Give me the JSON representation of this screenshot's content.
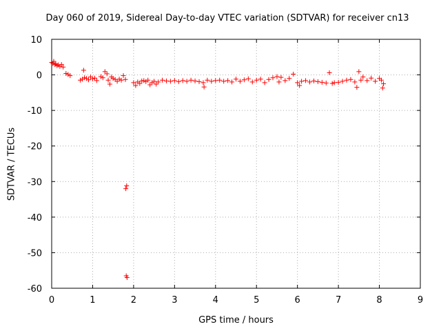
{
  "chart_data": {
    "type": "scatter",
    "title": "Day 060 of 2019, Sidereal Day-to-day VTEC variation (SDTVAR) for receiver cn13",
    "xlabel": "GPS time / hours",
    "ylabel": "SDTVAR / TECUs",
    "xlim": [
      0,
      9
    ],
    "ylim": [
      -60,
      10
    ],
    "xticks": [
      0,
      1,
      2,
      3,
      4,
      5,
      6,
      7,
      8,
      9
    ],
    "yticks": [
      10,
      0,
      -10,
      -20,
      -30,
      -40,
      -50,
      -60
    ],
    "grid": true,
    "marker": "+",
    "color": "#ff0000",
    "series": [
      {
        "name": "cn13",
        "points": [
          [
            0.0,
            3.5
          ],
          [
            0.03,
            3.2
          ],
          [
            0.05,
            3.8
          ],
          [
            0.08,
            2.9
          ],
          [
            0.1,
            3.1
          ],
          [
            0.13,
            2.6
          ],
          [
            0.16,
            2.8
          ],
          [
            0.2,
            2.4
          ],
          [
            0.24,
            2.9
          ],
          [
            0.28,
            2.2
          ],
          [
            0.35,
            0.4
          ],
          [
            0.4,
            0.1
          ],
          [
            0.45,
            -0.2
          ],
          [
            0.7,
            -1.5
          ],
          [
            0.75,
            -1.2
          ],
          [
            0.78,
            1.3
          ],
          [
            0.8,
            -0.8
          ],
          [
            0.85,
            -1.0
          ],
          [
            0.9,
            -1.4
          ],
          [
            0.95,
            -0.6
          ],
          [
            1.0,
            -1.1
          ],
          [
            1.05,
            -0.9
          ],
          [
            1.1,
            -1.6
          ],
          [
            1.2,
            -0.5
          ],
          [
            1.25,
            -0.8
          ],
          [
            1.3,
            0.9
          ],
          [
            1.35,
            0.3
          ],
          [
            1.38,
            -1.5
          ],
          [
            1.42,
            -2.6
          ],
          [
            1.46,
            -0.6
          ],
          [
            1.5,
            -1.0
          ],
          [
            1.55,
            -1.3
          ],
          [
            1.6,
            -1.8
          ],
          [
            1.65,
            -1.2
          ],
          [
            1.7,
            -1.5
          ],
          [
            1.75,
            -0.2
          ],
          [
            1.8,
            -1.3
          ],
          [
            1.81,
            -32.0
          ],
          [
            1.83,
            -31.2
          ],
          [
            1.82,
            -56.5
          ],
          [
            1.84,
            -57.0
          ],
          [
            2.0,
            -2.2
          ],
          [
            2.05,
            -3.0
          ],
          [
            2.1,
            -2.0
          ],
          [
            2.15,
            -2.4
          ],
          [
            2.2,
            -1.7
          ],
          [
            2.25,
            -1.6
          ],
          [
            2.3,
            -1.9
          ],
          [
            2.35,
            -1.5
          ],
          [
            2.4,
            -2.8
          ],
          [
            2.45,
            -2.2
          ],
          [
            2.5,
            -1.8
          ],
          [
            2.55,
            -2.6
          ],
          [
            2.6,
            -2.0
          ],
          [
            2.7,
            -1.5
          ],
          [
            2.8,
            -1.7
          ],
          [
            2.9,
            -1.8
          ],
          [
            3.0,
            -1.6
          ],
          [
            3.1,
            -1.9
          ],
          [
            3.2,
            -1.6
          ],
          [
            3.3,
            -1.8
          ],
          [
            3.4,
            -1.5
          ],
          [
            3.5,
            -1.7
          ],
          [
            3.6,
            -1.9
          ],
          [
            3.7,
            -2.2
          ],
          [
            3.72,
            -3.4
          ],
          [
            3.8,
            -1.5
          ],
          [
            3.9,
            -1.8
          ],
          [
            4.0,
            -1.6
          ],
          [
            4.1,
            -1.5
          ],
          [
            4.2,
            -1.8
          ],
          [
            4.3,
            -1.6
          ],
          [
            4.4,
            -2.0
          ],
          [
            4.5,
            -1.2
          ],
          [
            4.6,
            -1.8
          ],
          [
            4.7,
            -1.4
          ],
          [
            4.8,
            -1.1
          ],
          [
            4.9,
            -2.0
          ],
          [
            5.0,
            -1.5
          ],
          [
            5.1,
            -1.2
          ],
          [
            5.2,
            -2.2
          ],
          [
            5.3,
            -1.3
          ],
          [
            5.4,
            -0.8
          ],
          [
            5.5,
            -0.5
          ],
          [
            5.55,
            -2.0
          ],
          [
            5.6,
            -0.7
          ],
          [
            5.7,
            -1.6
          ],
          [
            5.8,
            -1.0
          ],
          [
            5.9,
            0.2
          ],
          [
            6.0,
            -2.2
          ],
          [
            6.05,
            -3.0
          ],
          [
            6.1,
            -1.8
          ],
          [
            6.2,
            -1.6
          ],
          [
            6.3,
            -2.0
          ],
          [
            6.4,
            -1.7
          ],
          [
            6.5,
            -1.9
          ],
          [
            6.6,
            -2.1
          ],
          [
            6.7,
            -2.3
          ],
          [
            6.78,
            0.6
          ],
          [
            6.85,
            -2.4
          ],
          [
            6.9,
            -2.2
          ],
          [
            7.0,
            -2.1
          ],
          [
            7.1,
            -1.8
          ],
          [
            7.2,
            -1.5
          ],
          [
            7.3,
            -1.3
          ],
          [
            7.4,
            -2.0
          ],
          [
            7.45,
            -3.5
          ],
          [
            7.5,
            0.9
          ],
          [
            7.55,
            -1.5
          ],
          [
            7.6,
            -0.6
          ],
          [
            7.7,
            -1.6
          ],
          [
            7.8,
            -0.9
          ],
          [
            7.9,
            -1.8
          ],
          [
            8.0,
            -1.0
          ],
          [
            8.05,
            -1.5
          ],
          [
            8.08,
            -3.7
          ],
          [
            8.1,
            -2.5
          ]
        ]
      }
    ]
  }
}
